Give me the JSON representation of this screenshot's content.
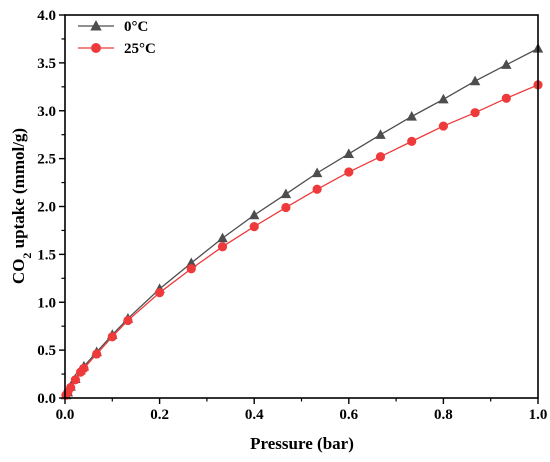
{
  "chart_data": {
    "type": "line",
    "xlabel": "Pressure (bar)",
    "ylabel_main": "CO",
    "ylabel_sub": "2",
    "ylabel_rest": " uptake (mmol/g)",
    "xlim": [
      0,
      1.0
    ],
    "ylim": [
      0,
      4.0
    ],
    "x_ticks": [
      "0.0",
      "0.2",
      "0.4",
      "0.6",
      "0.8",
      "1.0"
    ],
    "y_ticks": [
      "0.0",
      "0.5",
      "1.0",
      "1.5",
      "2.0",
      "2.5",
      "3.0",
      "3.5",
      "4.0"
    ],
    "grid": false,
    "legend_position": "top-left",
    "series": [
      {
        "name": "0°C",
        "color": "#4d4d4d",
        "marker": "triangle",
        "x": [
          0.002,
          0.006,
          0.012,
          0.022,
          0.033,
          0.04,
          0.067,
          0.1,
          0.133,
          0.2,
          0.267,
          0.333,
          0.4,
          0.467,
          0.533,
          0.6,
          0.667,
          0.733,
          0.8,
          0.867,
          0.933,
          1.0
        ],
        "y": [
          0.03,
          0.06,
          0.12,
          0.2,
          0.29,
          0.33,
          0.48,
          0.66,
          0.83,
          1.14,
          1.41,
          1.67,
          1.91,
          2.13,
          2.35,
          2.55,
          2.75,
          2.94,
          3.12,
          3.31,
          3.48,
          3.65
        ]
      },
      {
        "name": "25°C",
        "color": "#ee3a3a",
        "marker": "circle",
        "x": [
          0.002,
          0.006,
          0.012,
          0.022,
          0.033,
          0.04,
          0.067,
          0.1,
          0.133,
          0.2,
          0.267,
          0.333,
          0.4,
          0.467,
          0.533,
          0.6,
          0.667,
          0.733,
          0.8,
          0.867,
          0.933,
          1.0
        ],
        "y": [
          0.03,
          0.06,
          0.11,
          0.19,
          0.27,
          0.31,
          0.46,
          0.64,
          0.81,
          1.1,
          1.35,
          1.58,
          1.79,
          1.99,
          2.18,
          2.36,
          2.52,
          2.68,
          2.84,
          2.98,
          3.13,
          3.27
        ]
      }
    ]
  }
}
